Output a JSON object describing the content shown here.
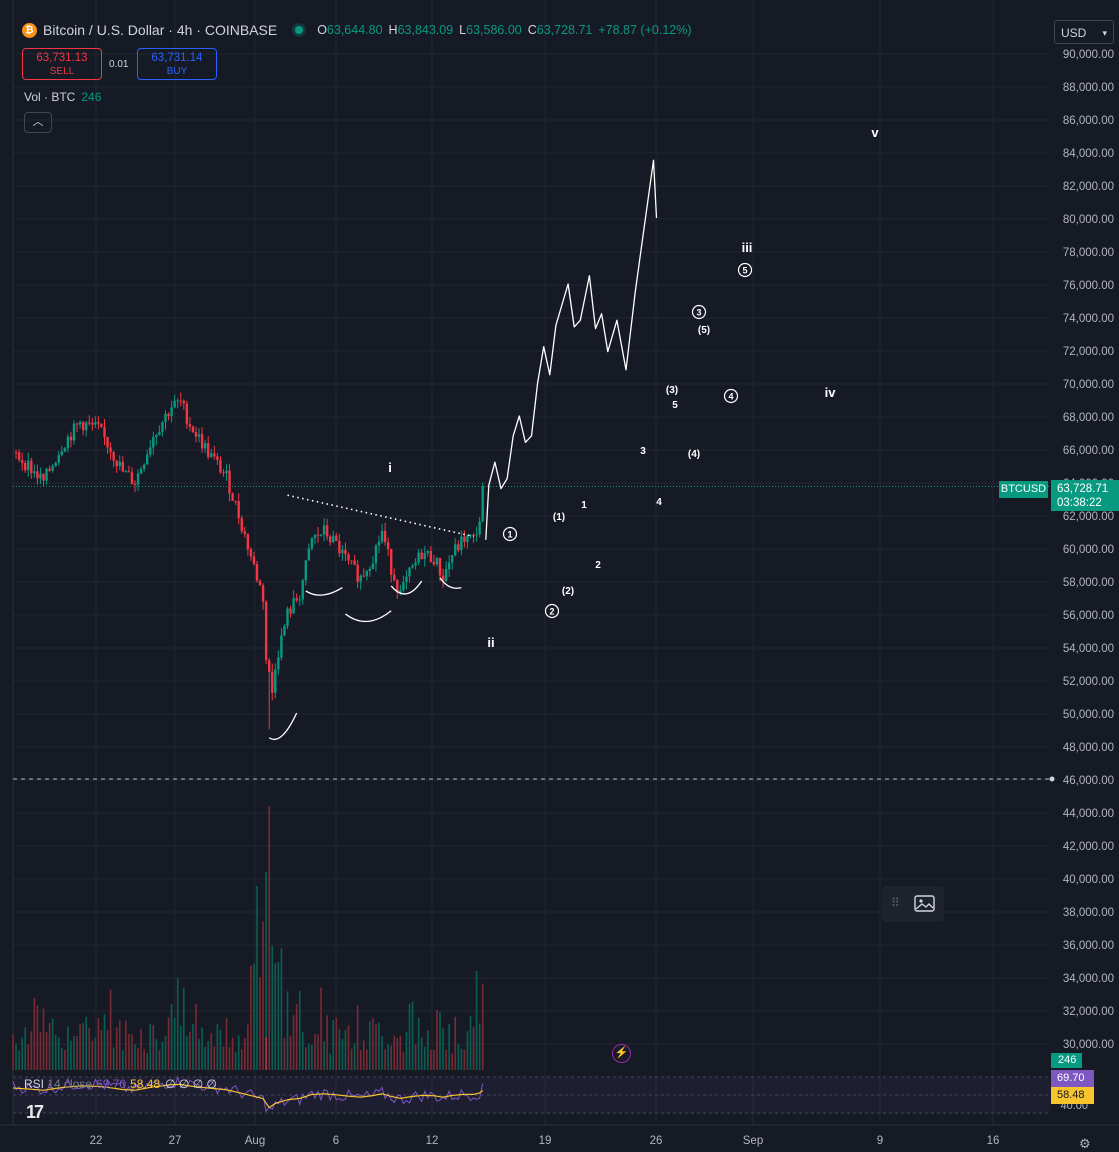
{
  "header": {
    "title": "Bitcoin / U.S. Dollar · 4h · COINBASE",
    "open_key": "O",
    "open": "63,644.80",
    "high_key": "H",
    "high": "63,843.09",
    "low_key": "L",
    "low": "63,586.00",
    "close_key": "C",
    "close": "63,728.71",
    "change": "+78.87 (+0.12%)"
  },
  "trade": {
    "sell_price": "63,731.13",
    "sell_label": "SELL",
    "spread": "0.01",
    "buy_price": "63,731.14",
    "buy_label": "BUY"
  },
  "volume_legend": {
    "label": "Vol · BTC",
    "value": "246"
  },
  "collapse_icon": "chevron-up-icon",
  "currency": "USD",
  "price_axis_labels": [
    "90,000.00",
    "88,000.00",
    "86,000.00",
    "84,000.00",
    "82,000.00",
    "80,000.00",
    "78,000.00",
    "76,000.00",
    "74,000.00",
    "72,000.00",
    "70,000.00",
    "68,000.00",
    "66,000.00",
    "64,000.00",
    "62,000.00",
    "60,000.00",
    "58,000.00",
    "56,000.00",
    "54,000.00",
    "52,000.00",
    "50,000.00",
    "48,000.00",
    "46,000.00",
    "44,000.00",
    "42,000.00",
    "40,000.00",
    "38,000.00",
    "36,000.00",
    "34,000.00",
    "32,000.00",
    "30,000.00"
  ],
  "last_price": {
    "symbol": "BTCUSD",
    "price": "63,728.71",
    "countdown": "03:38:22"
  },
  "volume_tag": "246",
  "time_axis_labels": [
    "22",
    "27",
    "Aug",
    "6",
    "12",
    "19",
    "26",
    "Sep",
    "9",
    "16"
  ],
  "wave_labels": [
    "i",
    "ii",
    "iii",
    "iv",
    "v",
    "1",
    "2",
    "3",
    "4",
    "5",
    "(1)",
    "(2)",
    "(3)",
    "(4)",
    "(5)",
    "1",
    "2",
    "3",
    "4",
    "5"
  ],
  "rsi": {
    "label": "RSI",
    "params": "14 close",
    "value": "69.70",
    "ma": "58.48",
    "extras": "∅ ∅ ∅ ∅",
    "axis_label": "40.00"
  },
  "colors": {
    "background": "#161a25",
    "up": "#089981",
    "down": "#f23645",
    "rsi": "#7e57c2",
    "rsi_ma": "#f7c52b"
  },
  "chart_data": {
    "type": "candlestick",
    "title": "Bitcoin / U.S. Dollar · 4h · COINBASE",
    "xlabel": "",
    "ylabel": "",
    "ylim": [
      46000,
      91000
    ],
    "x_dates": [
      "Jul 22",
      "Jul 27",
      "Aug 1",
      "Aug 6",
      "Aug 12",
      "Aug 19",
      "Aug 26",
      "Sep 1",
      "Sep 9",
      "Sep 16"
    ],
    "close_path": [
      [
        0,
        65800
      ],
      [
        5,
        65000
      ],
      [
        10,
        64000
      ],
      [
        16,
        66200
      ],
      [
        22,
        67600
      ],
      [
        28,
        67200
      ],
      [
        32,
        66000
      ],
      [
        36,
        64600
      ],
      [
        40,
        64000
      ],
      [
        46,
        66800
      ],
      [
        52,
        68600
      ],
      [
        55,
        68800
      ],
      [
        58,
        67500
      ],
      [
        64,
        65800
      ],
      [
        70,
        64300
      ],
      [
        74,
        62000
      ],
      [
        78,
        59500
      ],
      [
        82,
        57000
      ],
      [
        84,
        49500
      ],
      [
        86,
        53000
      ],
      [
        90,
        56000
      ],
      [
        94,
        57200
      ],
      [
        98,
        60500
      ],
      [
        102,
        61000
      ],
      [
        106,
        60200
      ],
      [
        110,
        59000
      ],
      [
        114,
        58200
      ],
      [
        118,
        59500
      ],
      [
        121,
        61000
      ],
      [
        124,
        58800
      ],
      [
        127,
        57200
      ],
      [
        130,
        58400
      ],
      [
        134,
        59700
      ],
      [
        138,
        59400
      ],
      [
        141,
        58200
      ],
      [
        144,
        59600
      ],
      [
        148,
        60600
      ],
      [
        151,
        60500
      ],
      [
        153,
        61700
      ],
      [
        154,
        63728
      ]
    ],
    "wave_path": [
      [
        155,
        60500
      ],
      [
        156,
        63800
      ],
      [
        158,
        65200
      ],
      [
        160,
        63600
      ],
      [
        162,
        64200
      ],
      [
        164,
        66800
      ],
      [
        166,
        68000
      ],
      [
        168,
        66400
      ],
      [
        170,
        66800
      ],
      [
        172,
        70000
      ],
      [
        174,
        72200
      ],
      [
        176,
        70500
      ],
      [
        178,
        73500
      ],
      [
        182,
        76000
      ],
      [
        184,
        73400
      ],
      [
        186,
        73800
      ],
      [
        189,
        76500
      ],
      [
        191,
        73300
      ],
      [
        193,
        74200
      ],
      [
        195,
        71900
      ],
      [
        198,
        73800
      ],
      [
        201,
        70800
      ],
      [
        204,
        75500
      ],
      [
        207,
        79500
      ],
      [
        210,
        83500
      ],
      [
        211,
        80000
      ]
    ],
    "labeled_levels": [
      {
        "label": "i",
        "x": 94,
        "y": 64200
      },
      {
        "label": "ii",
        "x": 118,
        "y": 54800
      },
      {
        "label": "iii",
        "x": 182,
        "y": 78300
      },
      {
        "label": "iv",
        "x": 202,
        "y": 69600
      },
      {
        "label": "v",
        "x": 209,
        "y": 85200
      }
    ],
    "volume_max": 44500,
    "rsi_value": 69.7,
    "rsi_ma": 58.48
  }
}
